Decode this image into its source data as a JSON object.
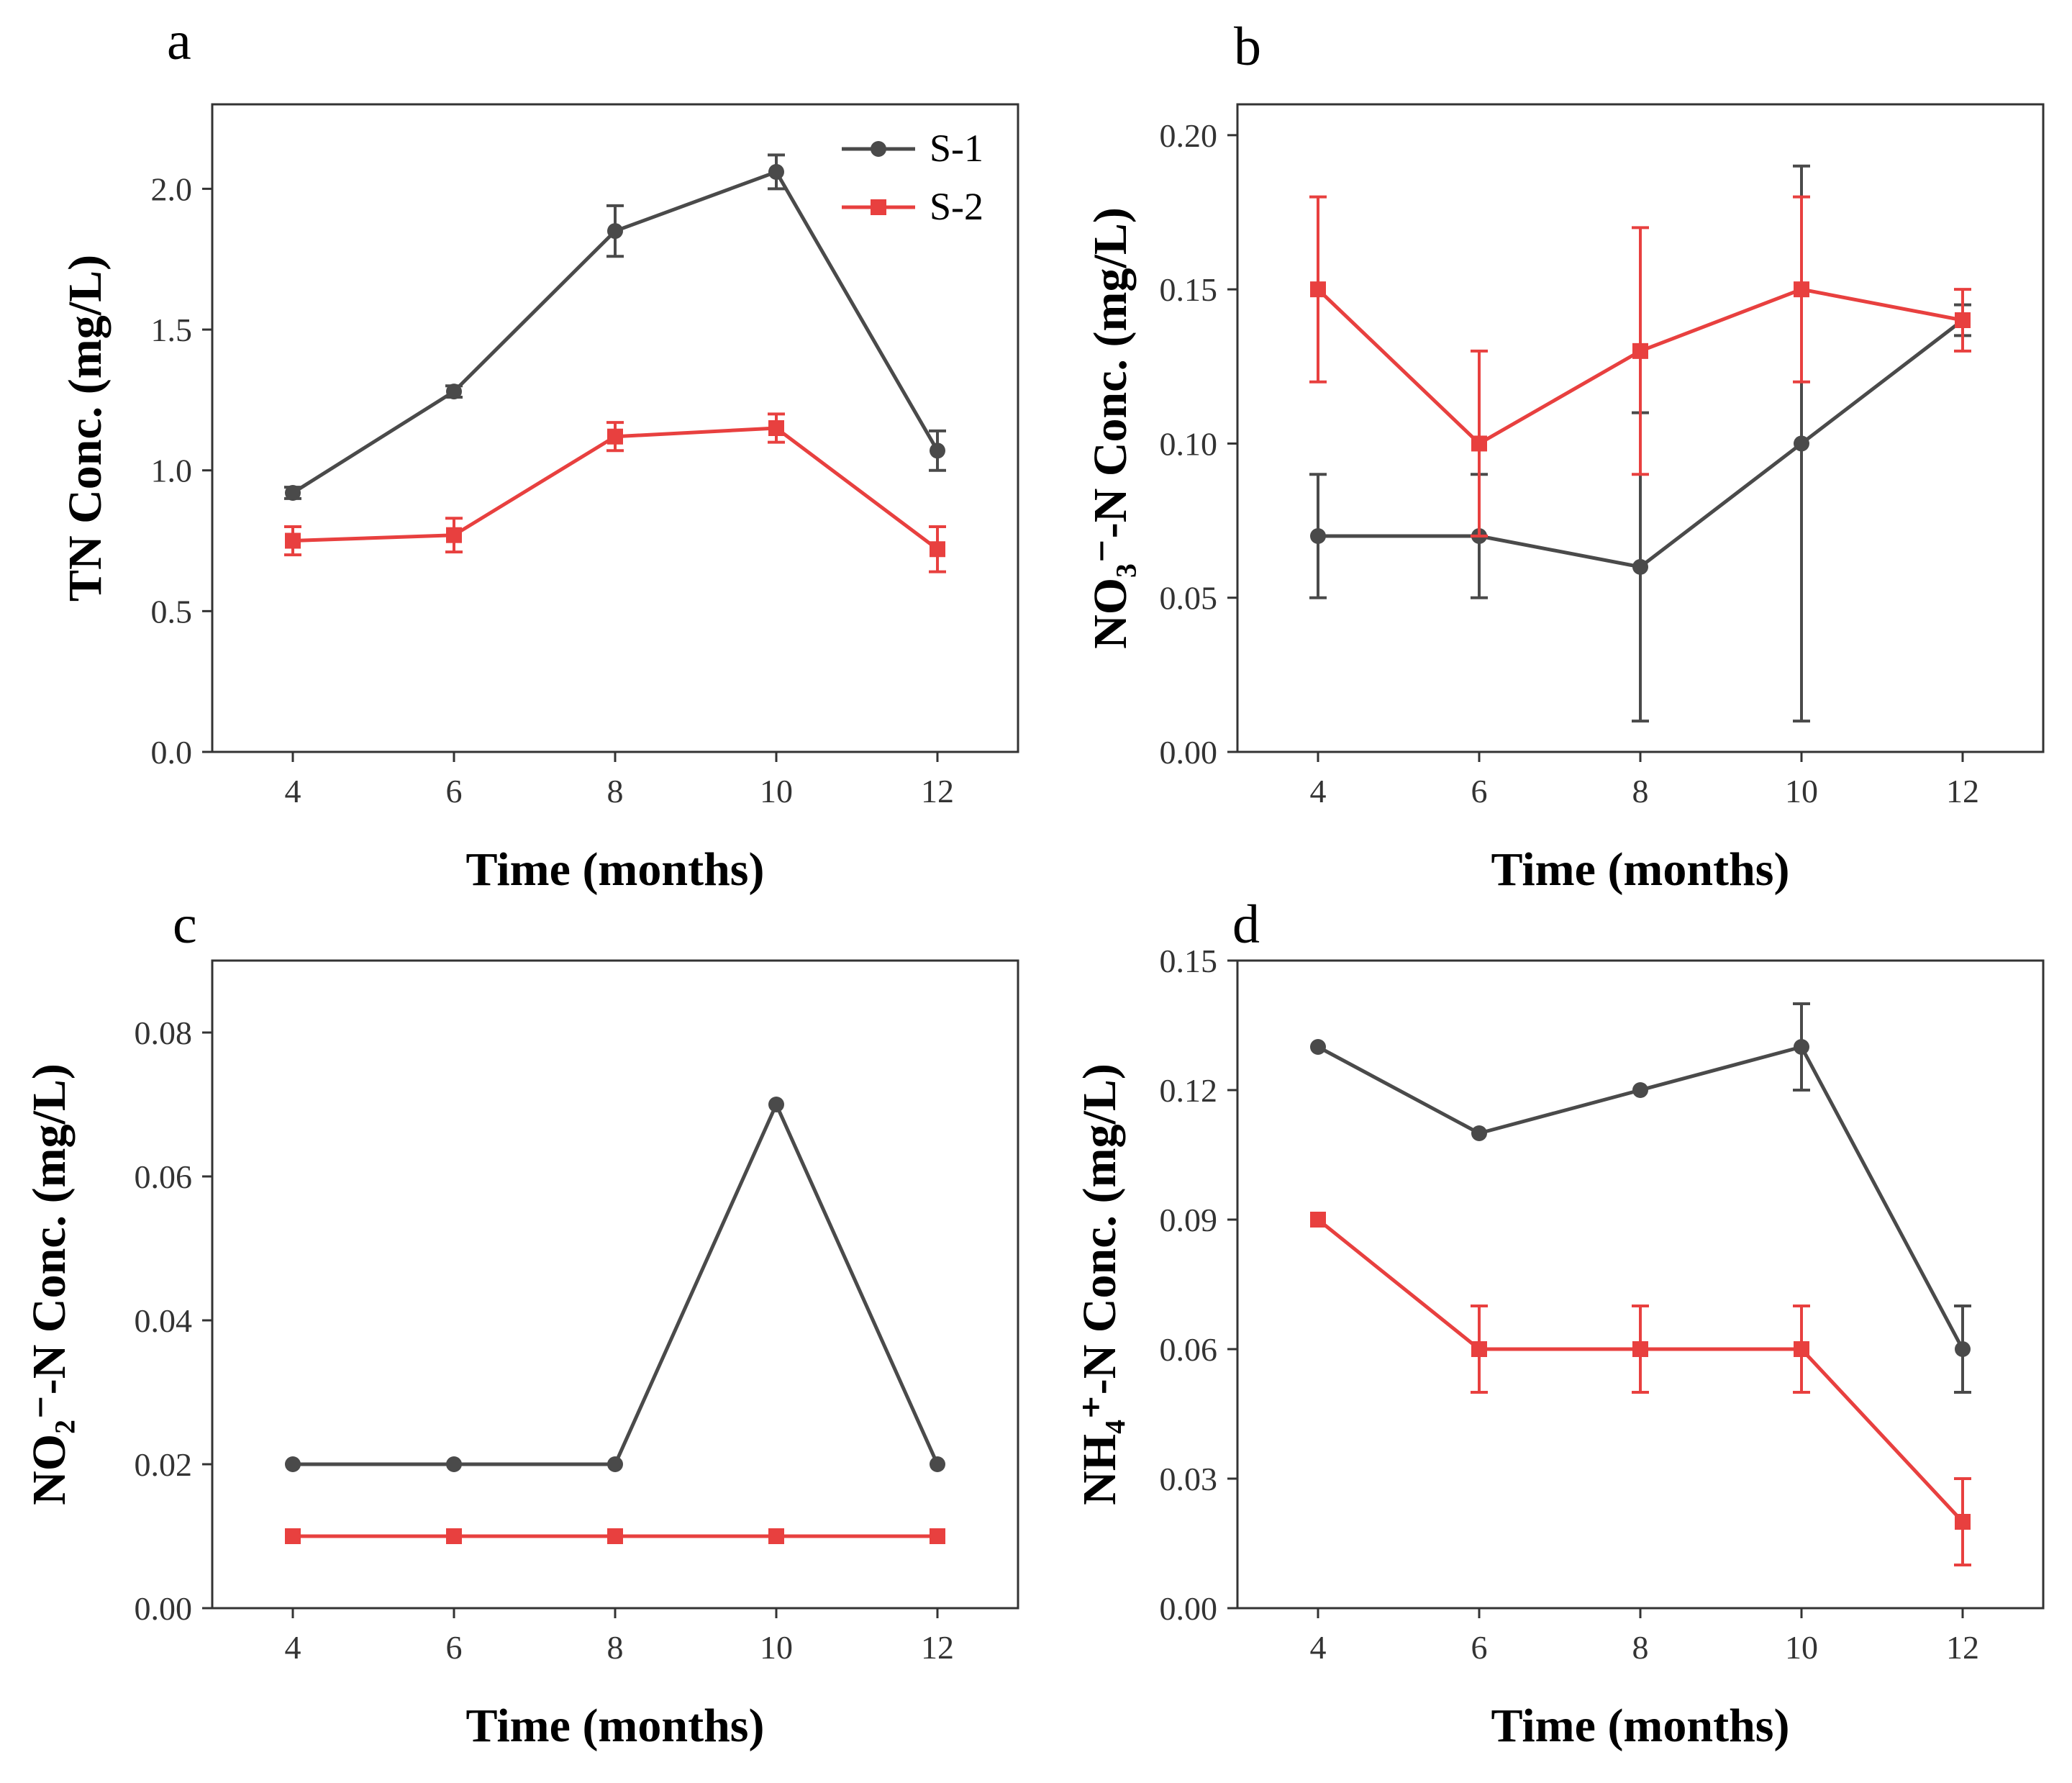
{
  "colors": {
    "s1": "#4a4a4a",
    "s2": "#e8403f",
    "axis": "#333333"
  },
  "legend": {
    "entries": [
      "S-1",
      "S-2"
    ],
    "placement": "top-right (panel a)"
  },
  "chart_data": [
    {
      "panel": "a",
      "type": "line",
      "xlabel": "Time (months)",
      "ylabel": "TN Conc. (mg/L)",
      "x": [
        4,
        6,
        8,
        10,
        12
      ],
      "xlim": [
        3,
        13
      ],
      "xticks": [
        "4",
        "6",
        "8",
        "10",
        "12"
      ],
      "ylim": [
        0,
        2.3
      ],
      "yticks": [
        "0.0",
        "0.5",
        "1.0",
        "1.5",
        "2.0"
      ],
      "ytick_values": [
        0,
        0.5,
        1.0,
        1.5,
        2.0
      ],
      "series": [
        {
          "name": "S-1",
          "values": [
            0.92,
            1.28,
            1.85,
            2.06,
            1.07
          ],
          "errors": [
            0.02,
            0.02,
            0.09,
            0.06,
            0.07
          ]
        },
        {
          "name": "S-2",
          "values": [
            0.75,
            0.77,
            1.12,
            1.15,
            0.72
          ],
          "errors": [
            0.05,
            0.06,
            0.05,
            0.05,
            0.08
          ]
        }
      ]
    },
    {
      "panel": "b",
      "type": "line",
      "xlabel": "Time (months)",
      "ylabel": "NO₃⁻-N Conc. (mg/L)",
      "x": [
        4,
        6,
        8,
        10,
        12
      ],
      "xlim": [
        3,
        13
      ],
      "xticks": [
        "4",
        "6",
        "8",
        "10",
        "12"
      ],
      "ylim": [
        0,
        0.21
      ],
      "yticks": [
        "0.00",
        "0.05",
        "0.10",
        "0.15",
        "0.20"
      ],
      "ytick_values": [
        0,
        0.05,
        0.1,
        0.15,
        0.2
      ],
      "series": [
        {
          "name": "S-1",
          "values": [
            0.07,
            0.07,
            0.06,
            0.1,
            0.14
          ],
          "errors": [
            0.02,
            0.02,
            0.05,
            0.09,
            0.005
          ]
        },
        {
          "name": "S-2",
          "values": [
            0.15,
            0.1,
            0.13,
            0.15,
            0.14
          ],
          "errors": [
            0.03,
            0.03,
            0.04,
            0.03,
            0.01
          ]
        }
      ]
    },
    {
      "panel": "c",
      "type": "line",
      "xlabel": "Time (months)",
      "ylabel": "NO₂⁻-N Conc. (mg/L)",
      "x": [
        4,
        6,
        8,
        10,
        12
      ],
      "xlim": [
        3,
        13
      ],
      "xticks": [
        "4",
        "6",
        "8",
        "10",
        "12"
      ],
      "ylim": [
        0,
        0.09
      ],
      "yticks": [
        "0.00",
        "0.02",
        "0.04",
        "0.06",
        "0.08"
      ],
      "ytick_values": [
        0,
        0.02,
        0.04,
        0.06,
        0.08
      ],
      "series": [
        {
          "name": "S-1",
          "values": [
            0.02,
            0.02,
            0.02,
            0.07,
            0.02
          ],
          "errors": [
            0,
            0,
            0,
            0,
            0
          ]
        },
        {
          "name": "S-2",
          "values": [
            0.01,
            0.01,
            0.01,
            0.01,
            0.01
          ],
          "errors": [
            0,
            0,
            0,
            0,
            0
          ]
        }
      ]
    },
    {
      "panel": "d",
      "type": "line",
      "xlabel": "Time (months)",
      "ylabel": "NH₄⁺-N Conc. (mg/L)",
      "x": [
        4,
        6,
        8,
        10,
        12
      ],
      "xlim": [
        3,
        13
      ],
      "xticks": [
        "4",
        "6",
        "8",
        "10",
        "12"
      ],
      "ylim": [
        0,
        0.15
      ],
      "yticks": [
        "0.00",
        "0.03",
        "0.06",
        "0.09",
        "0.12",
        "0.15"
      ],
      "ytick_values": [
        0,
        0.03,
        0.06,
        0.09,
        0.12,
        0.15
      ],
      "series": [
        {
          "name": "S-1",
          "values": [
            0.13,
            0.11,
            0.12,
            0.13,
            0.06
          ],
          "errors": [
            0,
            0,
            0,
            0.01,
            0.01
          ]
        },
        {
          "name": "S-2",
          "values": [
            0.09,
            0.06,
            0.06,
            0.06,
            0.02
          ],
          "errors": [
            0,
            0.01,
            0.01,
            0.01,
            0.01
          ]
        }
      ]
    }
  ]
}
